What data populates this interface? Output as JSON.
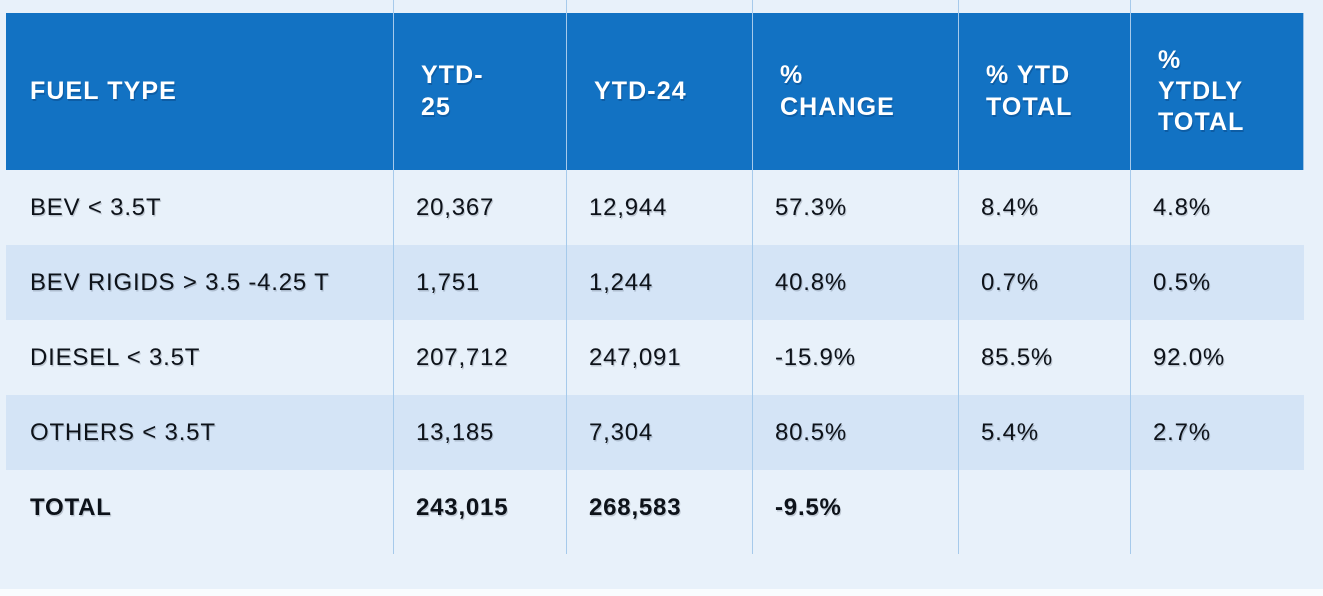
{
  "table": {
    "headers": [
      "FUEL TYPE",
      "YTD-\n25",
      "YTD-24",
      "%\nCHANGE",
      "% YTD\nTOTAL",
      "%\nYTDLY\nTOTAL"
    ],
    "rows": [
      [
        "BEV < 3.5T",
        "20,367",
        "12,944",
        "57.3%",
        "8.4%",
        "4.8%"
      ],
      [
        "BEV RIGIDS > 3.5 -4.25 T",
        "1,751",
        "1,244",
        "40.8%",
        "0.7%",
        "0.5%"
      ],
      [
        "DIESEL < 3.5T",
        "207,712",
        "247,091",
        "-15.9%",
        "85.5%",
        "92.0%"
      ],
      [
        "OTHERS < 3.5T",
        "13,185",
        "7,304",
        "80.5%",
        "5.4%",
        "2.7%"
      ]
    ],
    "total": [
      "TOTAL",
      "243,015",
      "268,583",
      "-9.5%",
      "",
      ""
    ]
  },
  "colors": {
    "header_bg": "#1272C3",
    "header_text": "#FFFFFF",
    "row_light_bg": "#E8F1FA",
    "row_dark_bg": "#D4E4F6",
    "divider": "#A6CAEB",
    "body_text": "#0D1219"
  },
  "chart_data": {
    "type": "table",
    "title": "",
    "columns": [
      "FUEL TYPE",
      "YTD-25",
      "YTD-24",
      "% CHANGE",
      "% YTD TOTAL",
      "% YTDLY TOTAL"
    ],
    "rows": [
      [
        "BEV < 3.5T",
        20367,
        12944,
        "57.3%",
        "8.4%",
        "4.8%"
      ],
      [
        "BEV RIGIDS > 3.5 -4.25 T",
        1751,
        1244,
        "40.8%",
        "0.7%",
        "0.5%"
      ],
      [
        "DIESEL < 3.5T",
        207712,
        247091,
        "-15.9%",
        "85.5%",
        "92.0%"
      ],
      [
        "OTHERS < 3.5T",
        13185,
        7304,
        "80.5%",
        "5.4%",
        "2.7%"
      ],
      [
        "TOTAL",
        243015,
        268583,
        "-9.5%",
        "",
        ""
      ]
    ]
  }
}
